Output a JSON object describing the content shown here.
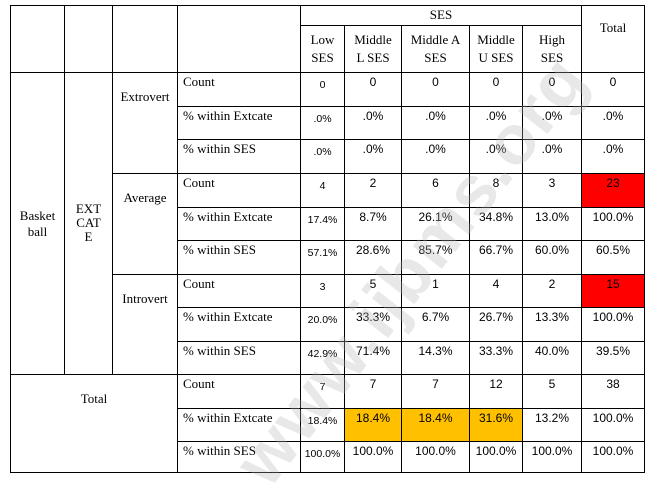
{
  "header": {
    "ses": "SES",
    "total": "Total",
    "cols": [
      "Low\nSES",
      "Middle\nL SES",
      "Middle A\nSES",
      "Middle\nU SES",
      "High\nSES"
    ]
  },
  "row_group": "Basket\nball",
  "extcate": "EXT\nCAT\nE",
  "stats": [
    "Count",
    "% within Extcate",
    "% within SES"
  ],
  "categories": [
    {
      "label": "Extrovert",
      "rows": [
        {
          "vals": [
            "0",
            "0",
            "0",
            "0",
            "0"
          ],
          "total": "0"
        },
        {
          "vals": [
            ".0%",
            ".0%",
            ".0%",
            ".0%",
            ".0%"
          ],
          "total": ".0%"
        },
        {
          "vals": [
            ".0%",
            ".0%",
            ".0%",
            ".0%",
            ".0%"
          ],
          "total": ".0%"
        }
      ]
    },
    {
      "label": "Average",
      "rows": [
        {
          "vals": [
            "4",
            "2",
            "6",
            "8",
            "3"
          ],
          "total": "23"
        },
        {
          "vals": [
            "17.4%",
            "8.7%",
            "26.1%",
            "34.8%",
            "13.0%"
          ],
          "total": "100.0%"
        },
        {
          "vals": [
            "57.1%",
            "28.6%",
            "85.7%",
            "66.7%",
            "60.0%"
          ],
          "total": "60.5%"
        }
      ]
    },
    {
      "label": "Introvert",
      "rows": [
        {
          "vals": [
            "3",
            "5",
            "1",
            "4",
            "2"
          ],
          "total": "15"
        },
        {
          "vals": [
            "20.0%",
            "33.3%",
            "6.7%",
            "26.7%",
            "13.3%"
          ],
          "total": "100.0%"
        },
        {
          "vals": [
            "42.9%",
            "71.4%",
            "14.3%",
            "33.3%",
            "40.0%"
          ],
          "total": "39.5%"
        }
      ]
    }
  ],
  "total_block": {
    "label": "Total",
    "rows": [
      {
        "vals": [
          "7",
          "7",
          "7",
          "12",
          "5"
        ],
        "total": "38"
      },
      {
        "vals": [
          "18.4%",
          "18.4%",
          "18.4%",
          "31.6%",
          "13.2%"
        ],
        "total": "100.0%"
      },
      {
        "vals": [
          "100.0%",
          "100.0%",
          "100.0%",
          "100.0%",
          "100.0%"
        ],
        "total": "100.0%"
      }
    ]
  },
  "watermark": "www.ijbms.org",
  "highlight_colors": {
    "red": "#ff0000",
    "gold": "#ffc000"
  }
}
